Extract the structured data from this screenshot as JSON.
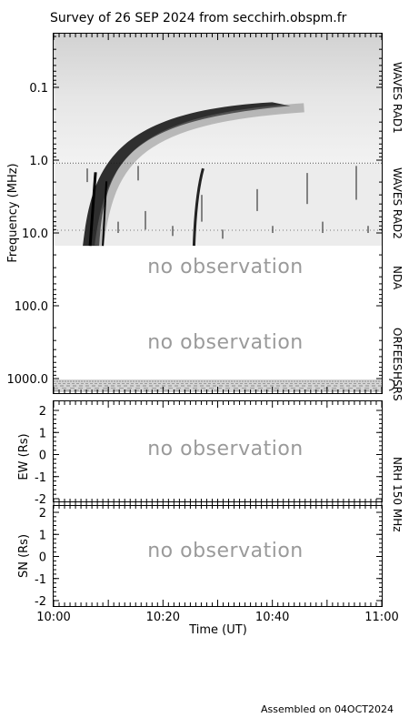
{
  "title": "Survey of 26 SEP 2024 from secchirh.obspm.fr",
  "footer": "Assembled on 04OCT2024",
  "no_observation_label": "no observation",
  "colors": {
    "background": "#ffffff",
    "ink": "#000000",
    "no_observation": "#9a9a9a",
    "burst": "#111111"
  },
  "chart_data": [
    {
      "type": "heatmap",
      "name": "dynamic-spectrum",
      "ylabel": "Frequency (MHz)",
      "y_scale": "log",
      "y_inverted": true,
      "ylim": [
        0.02,
        1100
      ],
      "yticks": [
        0.1,
        1.0,
        10.0,
        100.0,
        1000.0
      ],
      "ytick_labels": [
        "0.1",
        "1.0",
        "10.0",
        "100.0",
        "1000.0"
      ],
      "xlim": [
        "10:00",
        "11:00"
      ],
      "instrument_bands": [
        {
          "label": "WAVES RAD1",
          "f_min": 0.02,
          "f_max": 1.1,
          "observed": true
        },
        {
          "label": "WAVES RAD2",
          "f_min": 1.1,
          "f_max": 15.0,
          "observed": true
        },
        {
          "label": "NDA",
          "f_min": 15.0,
          "f_max": 100.0,
          "observed": false
        },
        {
          "label": "ORFEES",
          "f_min": 100.0,
          "f_max": 900.0,
          "observed": false
        },
        {
          "label": "HSRS",
          "f_min": 900.0,
          "f_max": 1100.0,
          "observed": true
        }
      ],
      "bursts": [
        {
          "kind": "type III",
          "start_time": "10:06",
          "end_time": "10:30",
          "f_high": 15.0,
          "f_low": 0.16
        },
        {
          "kind": "type III",
          "start_time": "10:26",
          "end_time": "10:27",
          "f_high": 15.0,
          "f_low": 1.3
        }
      ]
    },
    {
      "type": "scatter",
      "name": "nrh-ew",
      "ylabel": "EW (Rs)",
      "ylim": [
        -2,
        2
      ],
      "yticks": [
        -2,
        -1,
        0,
        1,
        2
      ],
      "ytick_labels": [
        "-2",
        "-1",
        "0",
        "1",
        "2"
      ],
      "xlim": [
        "10:00",
        "11:00"
      ],
      "observed": false,
      "series": []
    },
    {
      "type": "scatter",
      "name": "nrh-sn",
      "ylabel": "SN (Rs)",
      "ylim": [
        -2,
        2
      ],
      "yticks": [
        -2,
        -1,
        0,
        1,
        2
      ],
      "ytick_labels": [
        "-2",
        "-1",
        "0",
        "1",
        "2"
      ],
      "xlim": [
        "10:00",
        "11:00"
      ],
      "xlabel": "Time (UT)",
      "xticks": [
        "10:00",
        "10:20",
        "10:40",
        "11:00"
      ],
      "observed": false,
      "series": []
    }
  ],
  "nrh_label": "NRH 150 MHz"
}
